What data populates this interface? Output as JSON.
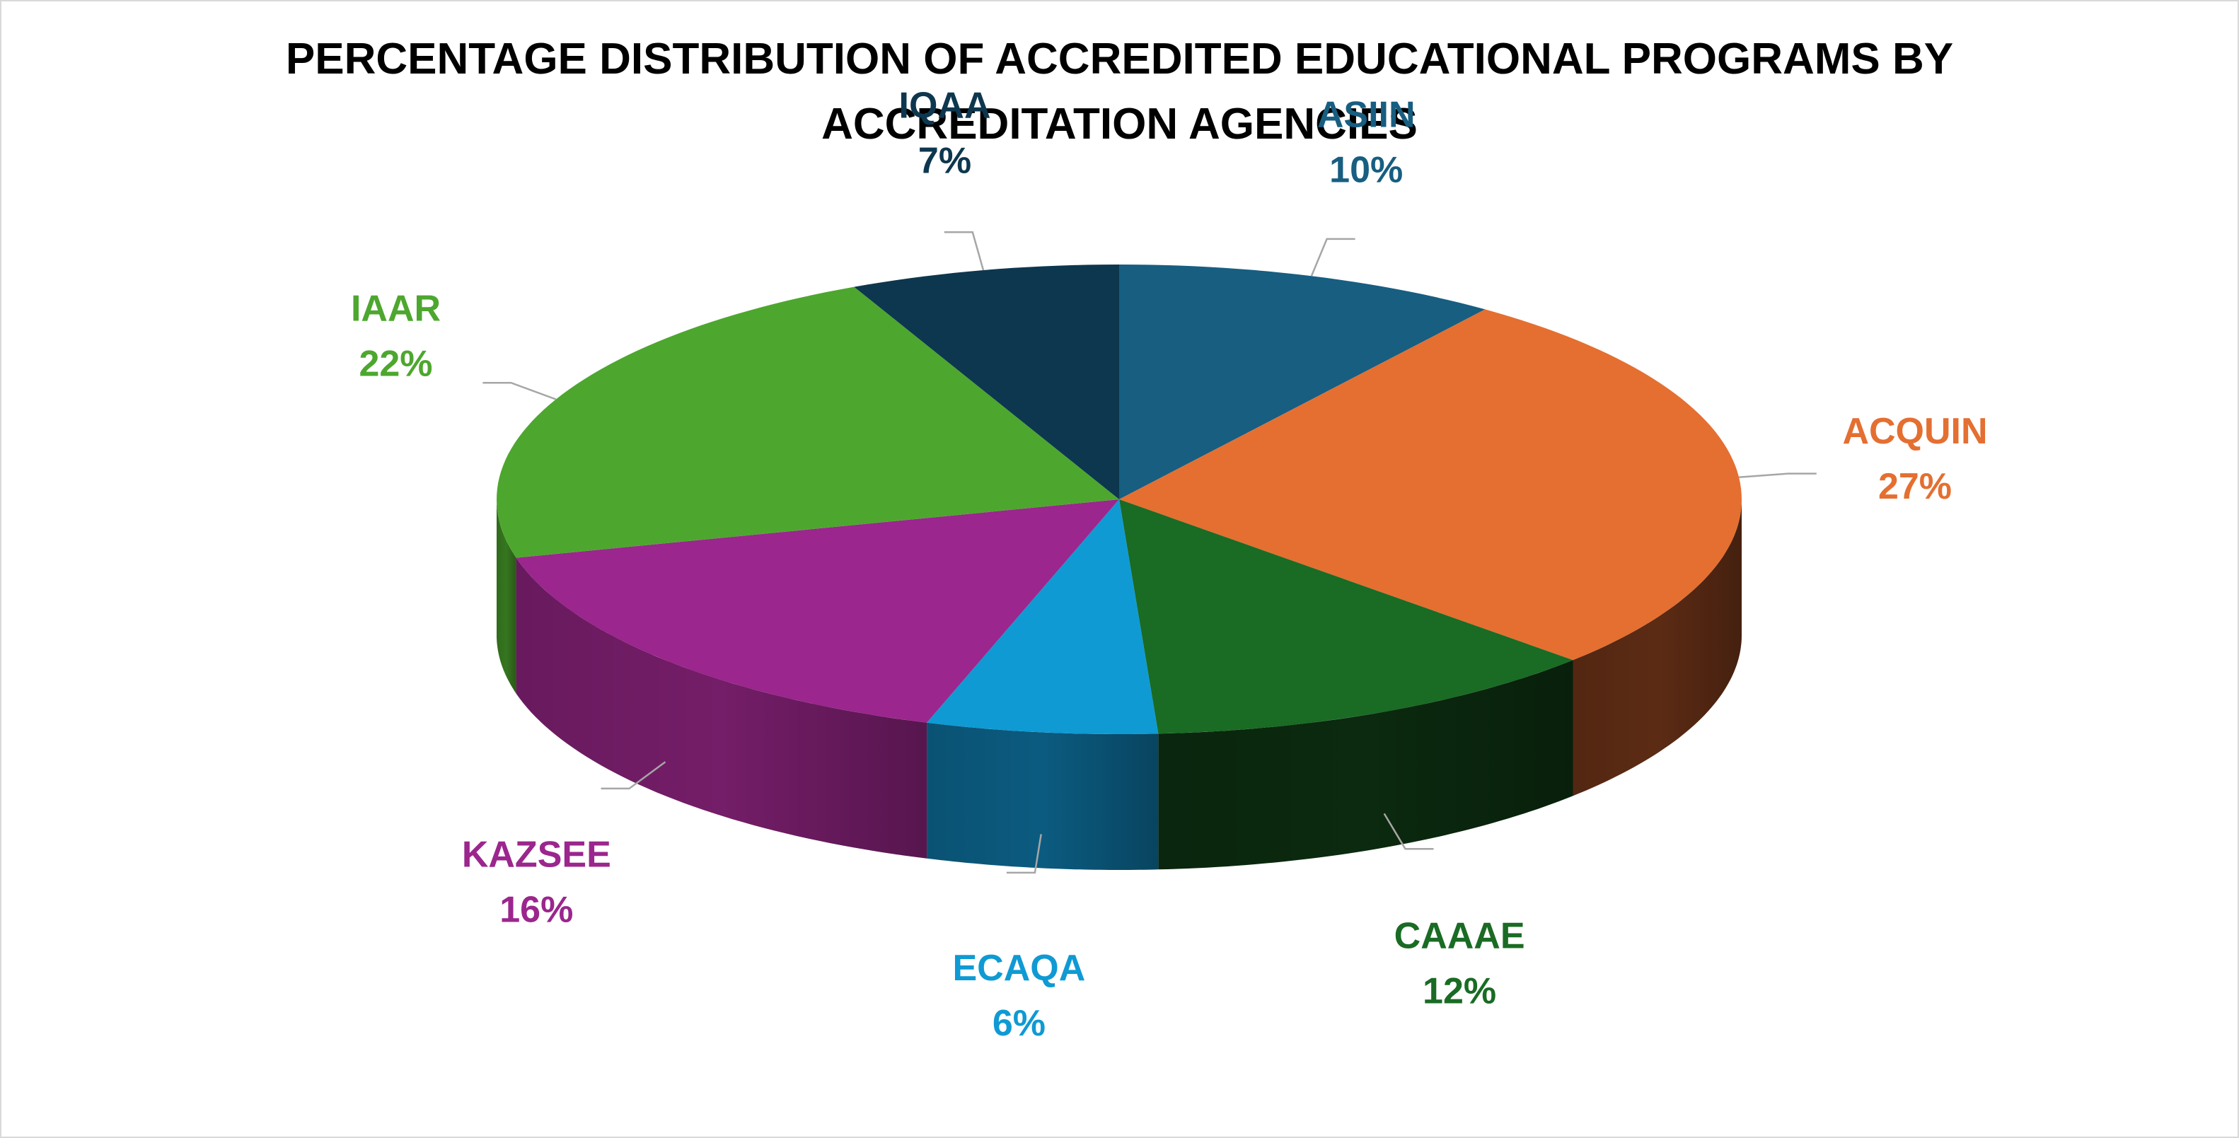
{
  "chart_data": {
    "type": "pie",
    "title_lines": [
      "PERCENTAGE DISTRIBUTION OF ACCREDITED EDUCATIONAL PROGRAMS BY",
      "ACCREDITATION AGENCIES"
    ],
    "slices": [
      {
        "label": "ASIIN",
        "value": 10,
        "value_label": "10%",
        "color": "#175e81",
        "side_color": "#0e3e56",
        "label_color": "#175e81"
      },
      {
        "label": "ACQUIN",
        "value": 27,
        "value_label": "27%",
        "color": "#e46f31",
        "side_color": "#5c2b14",
        "label_color": "#e46f31"
      },
      {
        "label": "CAAAE",
        "value": 12,
        "value_label": "12%",
        "color": "#1a6b24",
        "side_color": "#0b2a0f",
        "label_color": "#1a6b24"
      },
      {
        "label": "ECAQA",
        "value": 6,
        "value_label": "6%",
        "color": "#0f9ad3",
        "side_color": "#0b5b80",
        "label_color": "#0f9ad3"
      },
      {
        "label": "KAZSEE",
        "value": 16,
        "value_label": "16%",
        "color": "#9b268d",
        "side_color": "#741d68",
        "label_color": "#9b268d"
      },
      {
        "label": "IAAR",
        "value": 22,
        "value_label": "22%",
        "color": "#4da72e",
        "side_color": "#36761f",
        "label_color": "#4da72e"
      },
      {
        "label": "IQAA",
        "value": 7,
        "value_label": "7%",
        "color": "#0d374e",
        "side_color": "#082433",
        "label_color": "#0d374e"
      }
    ],
    "start_angle": "12 o'clock",
    "direction": "clockwise",
    "style": "3D exploded-free pie",
    "legend": "none",
    "data_labels": "category name and percentage, outside with leader lines"
  }
}
